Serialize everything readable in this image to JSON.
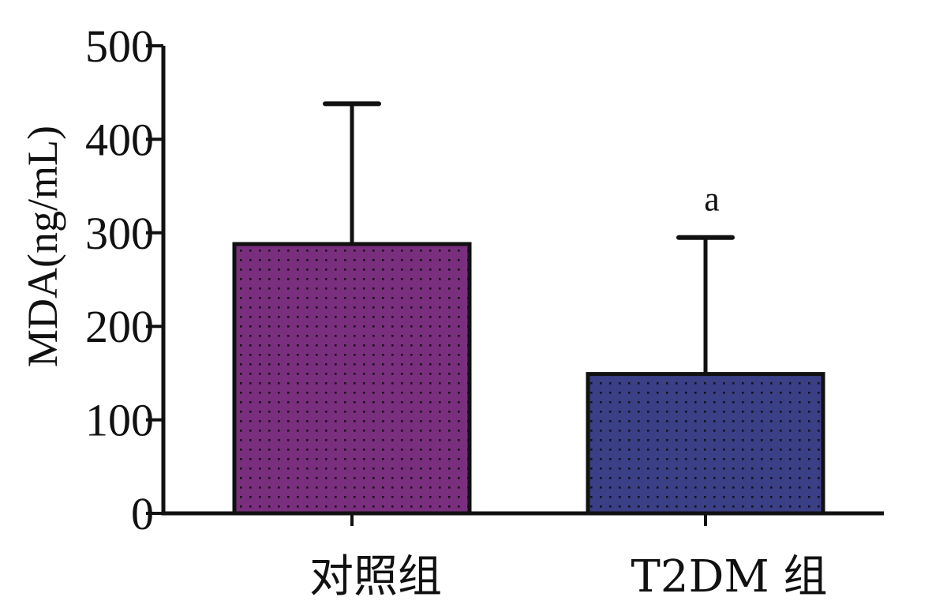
{
  "chart_data": {
    "type": "bar",
    "ylabel": "MDA(ng/mL)",
    "xlabel": "",
    "title": "",
    "ylim": [
      0,
      500
    ],
    "yticks": [
      0,
      100,
      200,
      300,
      400,
      500
    ],
    "categories": [
      "对照组",
      "T2DM 组"
    ],
    "values": [
      288,
      149
    ],
    "error_upper": [
      150,
      146
    ],
    "annotations": [
      "",
      "a"
    ],
    "bar_colors": [
      "#7a2f7e",
      "#3a3f86"
    ],
    "pattern": "dotted",
    "grid": false
  }
}
